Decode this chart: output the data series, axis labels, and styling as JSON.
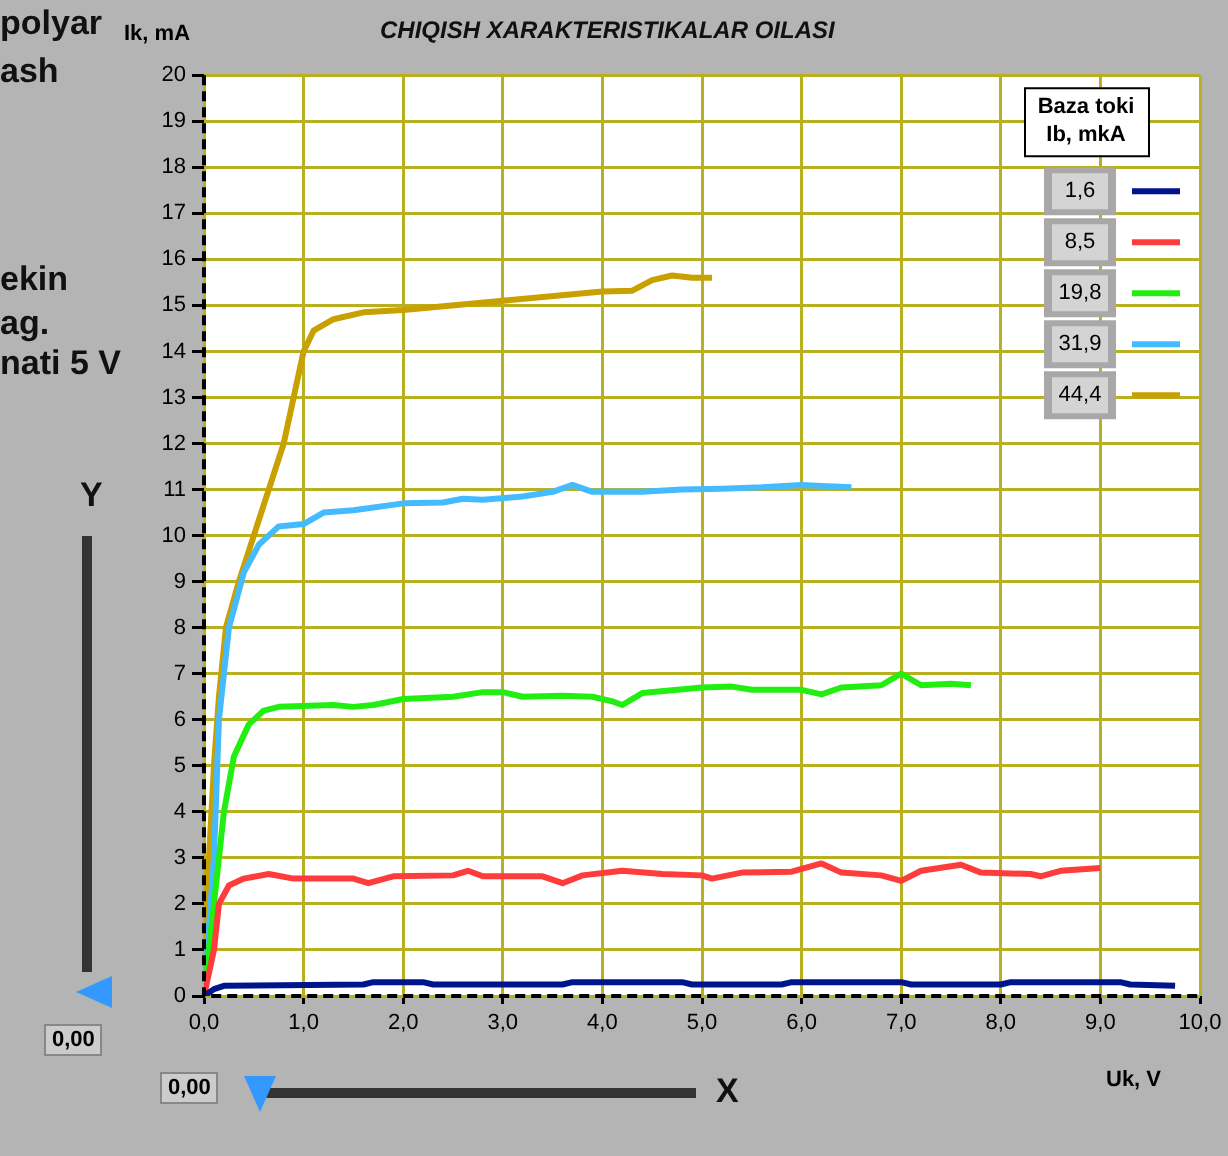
{
  "chart_data": {
    "type": "line",
    "title": "CHIQISH XARAKTERISTIKALAR OILASI",
    "xlabel": "Uk, V",
    "ylabel": "Ik, mA",
    "legend_title": "Baza toki Ib, mkA",
    "legend": "top right",
    "grid": true,
    "marker": "none",
    "line_style": "solid",
    "xlim": [
      0,
      10
    ],
    "ylim": [
      0,
      20
    ],
    "xticks": [
      {
        "value": 0,
        "label": "0,0"
      },
      {
        "value": 1,
        "label": "1,0"
      },
      {
        "value": 2,
        "label": "2,0"
      },
      {
        "value": 3,
        "label": "3,0"
      },
      {
        "value": 4,
        "label": "4,0"
      },
      {
        "value": 5,
        "label": "5,0"
      },
      {
        "value": 6,
        "label": "6,0"
      },
      {
        "value": 7,
        "label": "7,0"
      },
      {
        "value": 8,
        "label": "8,0"
      },
      {
        "value": 9,
        "label": "9,0"
      },
      {
        "value": 10,
        "label": "10,0"
      }
    ],
    "yticks": [
      0,
      1,
      2,
      3,
      4,
      5,
      6,
      7,
      8,
      9,
      10,
      11,
      12,
      13,
      14,
      15,
      16,
      17,
      18,
      19,
      20
    ],
    "annotations": [
      "polyar",
      "ash",
      "ekin",
      "ag.",
      "nati 5 V",
      "Y",
      "X",
      "0,00",
      "0,00"
    ],
    "series": [
      {
        "name": "1,6",
        "color": "#00158c",
        "x": [
          0,
          0.1,
          0.2,
          1.6,
          1.7,
          2.2,
          2.3,
          3.6,
          3.7,
          4.8,
          4.9,
          5.8,
          5.9,
          7.0,
          7.1,
          8.0,
          8.1,
          9.2,
          9.3,
          9.75
        ],
        "values": [
          0,
          0.15,
          0.22,
          0.25,
          0.3,
          0.3,
          0.25,
          0.25,
          0.3,
          0.3,
          0.25,
          0.25,
          0.3,
          0.3,
          0.25,
          0.25,
          0.3,
          0.3,
          0.25,
          0.22
        ]
      },
      {
        "name": "8,5",
        "color": "#ff3c3c",
        "x": [
          0,
          0.1,
          0.15,
          0.25,
          0.4,
          0.65,
          0.9,
          1.5,
          1.65,
          1.9,
          2.5,
          2.65,
          2.8,
          3.4,
          3.6,
          3.8,
          4.2,
          4.6,
          5.0,
          5.1,
          5.4,
          5.9,
          6.2,
          6.4,
          6.8,
          7.0,
          7.2,
          7.6,
          7.8,
          8.3,
          8.4,
          8.6,
          9.0
        ],
        "values": [
          0,
          1.0,
          2.0,
          2.4,
          2.55,
          2.65,
          2.55,
          2.55,
          2.45,
          2.6,
          2.62,
          2.72,
          2.6,
          2.6,
          2.45,
          2.62,
          2.72,
          2.65,
          2.62,
          2.55,
          2.68,
          2.7,
          2.88,
          2.68,
          2.62,
          2.5,
          2.72,
          2.85,
          2.68,
          2.65,
          2.6,
          2.72,
          2.78
        ]
      },
      {
        "name": "19,8",
        "color": "#22ee11",
        "x": [
          0,
          0.1,
          0.2,
          0.3,
          0.45,
          0.6,
          0.75,
          1.3,
          1.5,
          1.7,
          2.0,
          2.5,
          2.8,
          3.0,
          3.2,
          3.6,
          3.9,
          4.1,
          4.2,
          4.4,
          5.0,
          5.3,
          5.5,
          6.0,
          6.2,
          6.4,
          6.8,
          7.0,
          7.2,
          7.5,
          7.7
        ],
        "values": [
          0,
          2.0,
          4.0,
          5.2,
          5.9,
          6.2,
          6.28,
          6.32,
          6.28,
          6.32,
          6.45,
          6.5,
          6.6,
          6.6,
          6.5,
          6.52,
          6.5,
          6.4,
          6.32,
          6.58,
          6.7,
          6.72,
          6.65,
          6.65,
          6.55,
          6.7,
          6.75,
          7.0,
          6.75,
          6.78,
          6.75
        ]
      },
      {
        "name": "31,9",
        "color": "#44bbff",
        "x": [
          0,
          0.1,
          0.15,
          0.25,
          0.4,
          0.55,
          0.75,
          1.0,
          1.2,
          1.5,
          2.0,
          2.4,
          2.6,
          2.8,
          3.2,
          3.5,
          3.7,
          3.9,
          4.4,
          4.8,
          5.2,
          5.6,
          6.0,
          6.2,
          6.5
        ],
        "values": [
          0,
          3,
          6,
          8,
          9.2,
          9.8,
          10.2,
          10.25,
          10.5,
          10.55,
          10.7,
          10.72,
          10.8,
          10.78,
          10.85,
          10.95,
          11.1,
          10.95,
          10.95,
          11.0,
          11.02,
          11.05,
          11.1,
          11.08,
          11.05
        ]
      },
      {
        "name": "44,4",
        "color": "#c8a000",
        "x": [
          0,
          0.05,
          0.1,
          0.15,
          0.22,
          0.35,
          0.5,
          0.65,
          0.8,
          0.9,
          1.0,
          1.1,
          1.3,
          1.6,
          2.0,
          3.0,
          4.0,
          4.3,
          4.5,
          4.7,
          4.9,
          5.1
        ],
        "values": [
          0,
          3,
          5,
          6.5,
          8,
          9,
          10,
          11,
          12,
          13,
          14.0,
          14.45,
          14.7,
          14.85,
          14.9,
          15.1,
          15.3,
          15.32,
          15.55,
          15.65,
          15.6,
          15.6
        ]
      }
    ]
  }
}
